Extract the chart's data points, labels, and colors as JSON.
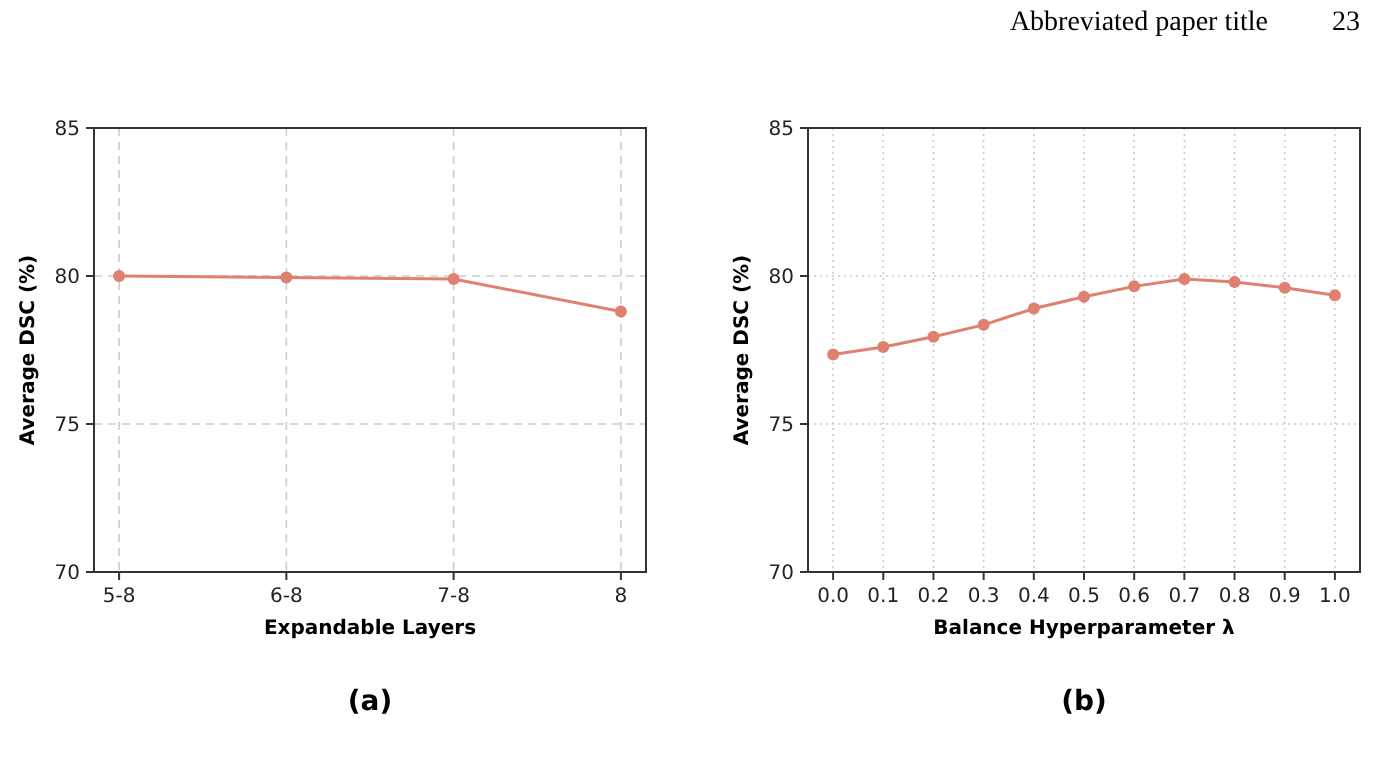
{
  "chart_data": [
    {
      "type": "line",
      "categories": [
        "5-8",
        "6-8",
        "7-8",
        "8"
      ],
      "xlabel": "Expandable Layers",
      "ylabel": "Average DSC (%)",
      "series": [
        {
          "color": "#e08070",
          "values": [
            80.0,
            79.95,
            79.9,
            78.8
          ]
        }
      ],
      "ylim": [
        70,
        85
      ],
      "yticks": [
        70,
        75,
        80,
        85
      ],
      "grid": true,
      "marker": "circle",
      "line_style": "solid",
      "annotations": [
        "(a)"
      ]
    },
    {
      "type": "line",
      "x": [
        0,
        0.1,
        0.2,
        0.3,
        0.4,
        0.5,
        0.6,
        0.7,
        0.8,
        0.9,
        1.0
      ],
      "xlabel": "Balance Hyperparameter λ",
      "ylabel": "Average DSC (%)",
      "series": [
        {
          "color": "#e08070",
          "values": [
            77.35,
            77.6,
            77.95,
            78.35,
            78.9,
            79.3,
            79.65,
            79.9,
            79.8,
            79.6,
            79.35
          ]
        }
      ],
      "xlim": [
        -0.05,
        1.05
      ],
      "xticks": [
        {
          "value": 0,
          "label": "0.0"
        },
        {
          "value": 0.1,
          "label": "0.1"
        },
        {
          "value": 0.2,
          "label": "0.2"
        },
        {
          "value": 0.3,
          "label": "0.3"
        },
        {
          "value": 0.4,
          "label": "0.4"
        },
        {
          "value": 0.5,
          "label": "0.5"
        },
        {
          "value": 0.6,
          "label": "0.6"
        },
        {
          "value": 0.7,
          "label": "0.7"
        },
        {
          "value": 0.8,
          "label": "0.8"
        },
        {
          "value": 0.9,
          "label": "0.9"
        },
        {
          "value": 1.0,
          "label": "1.0"
        }
      ],
      "ylim": [
        70,
        85
      ],
      "yticks": [
        70,
        75,
        80,
        85
      ],
      "grid": true,
      "marker": "circle",
      "line_style": "solid",
      "annotations": [
        "(b)",
        "Abbreviated paper title",
        "23"
      ]
    }
  ]
}
